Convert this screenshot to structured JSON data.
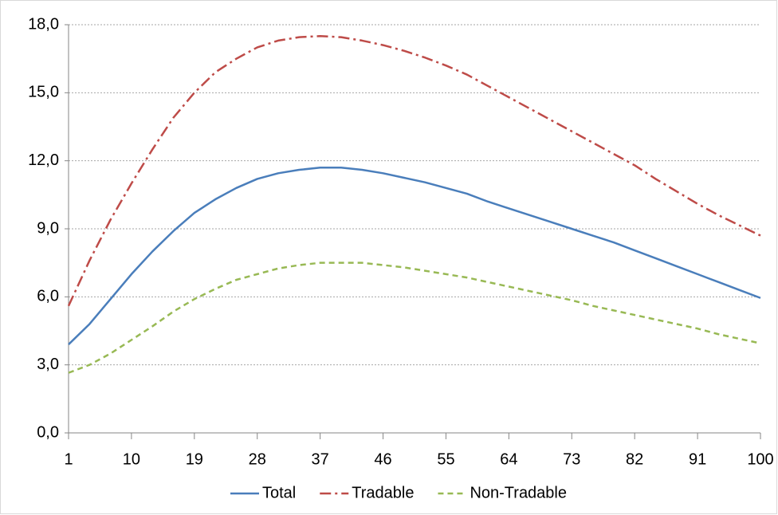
{
  "chart_data": {
    "type": "line",
    "x": [
      1,
      4,
      7,
      10,
      13,
      16,
      19,
      22,
      25,
      28,
      31,
      34,
      37,
      40,
      43,
      46,
      49,
      52,
      55,
      58,
      61,
      64,
      67,
      70,
      73,
      76,
      79,
      82,
      85,
      88,
      91,
      94,
      97,
      100
    ],
    "xlim": [
      1,
      100
    ],
    "xticks": [
      1,
      10,
      19,
      28,
      37,
      46,
      55,
      64,
      73,
      82,
      91,
      100
    ],
    "ylim": [
      0,
      18
    ],
    "yticks": [
      {
        "value": 0,
        "label": "0,0"
      },
      {
        "value": 3,
        "label": "3,0"
      },
      {
        "value": 6,
        "label": "6,0"
      },
      {
        "value": 9,
        "label": "9,0"
      },
      {
        "value": 12,
        "label": "12,0"
      },
      {
        "value": 15,
        "label": "15,0"
      },
      {
        "value": 18,
        "label": "18,0"
      }
    ],
    "grid": true,
    "legend": "bottom",
    "series": [
      {
        "name": "Total",
        "color": "#4a7ebb",
        "dash": "solid",
        "values": [
          3.9,
          4.8,
          5.9,
          7.0,
          8.0,
          8.9,
          9.7,
          10.3,
          10.8,
          11.2,
          11.45,
          11.6,
          11.7,
          11.7,
          11.6,
          11.45,
          11.25,
          11.05,
          10.8,
          10.55,
          10.2,
          9.9,
          9.6,
          9.3,
          9.0,
          8.7,
          8.4,
          8.05,
          7.7,
          7.35,
          7.0,
          6.65,
          6.3,
          5.95
        ]
      },
      {
        "name": "Tradable",
        "color": "#be4b48",
        "dash": "dash-dot",
        "values": [
          5.6,
          7.6,
          9.4,
          11.0,
          12.5,
          13.9,
          15.0,
          15.9,
          16.5,
          17.0,
          17.3,
          17.45,
          17.5,
          17.45,
          17.3,
          17.1,
          16.85,
          16.55,
          16.2,
          15.8,
          15.3,
          14.8,
          14.3,
          13.8,
          13.3,
          12.8,
          12.3,
          11.8,
          11.2,
          10.65,
          10.1,
          9.6,
          9.15,
          8.7
        ]
      },
      {
        "name": "Non-Tradable",
        "color": "#98b954",
        "dash": "dash",
        "values": [
          2.65,
          3.0,
          3.5,
          4.1,
          4.7,
          5.35,
          5.9,
          6.35,
          6.75,
          7.0,
          7.25,
          7.4,
          7.5,
          7.5,
          7.5,
          7.4,
          7.3,
          7.15,
          7.0,
          6.85,
          6.65,
          6.45,
          6.25,
          6.05,
          5.85,
          5.6,
          5.4,
          5.2,
          5.0,
          4.8,
          4.6,
          4.35,
          4.15,
          3.95
        ]
      }
    ]
  }
}
